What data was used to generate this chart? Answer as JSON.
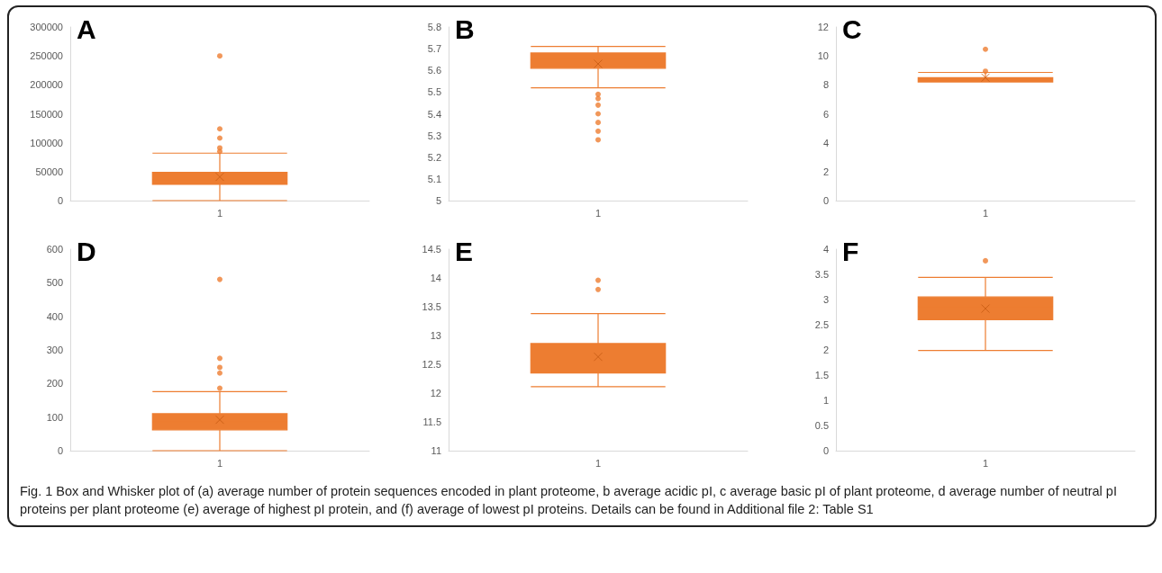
{
  "chart_data": [
    {
      "type": "box",
      "title": "A",
      "categories": [
        "1"
      ],
      "color": "#ed7d31",
      "ylim": [
        0,
        300000
      ],
      "yticks": [
        0,
        50000,
        100000,
        150000,
        200000,
        250000,
        300000
      ],
      "boxes": [
        {
          "low": 0,
          "q1": 28000,
          "median": 36000,
          "q3": 49000,
          "high": 82000,
          "mean": 41000,
          "outliers": [
            250000,
            124000,
            108000,
            91000,
            85000
          ]
        }
      ]
    },
    {
      "type": "box",
      "title": "B",
      "categories": [
        "1"
      ],
      "color": "#ed7d31",
      "ylim": [
        5,
        5.8
      ],
      "yticks": [
        5,
        5.1,
        5.2,
        5.3,
        5.4,
        5.5,
        5.6,
        5.7,
        5.8
      ],
      "boxes": [
        {
          "low": 5.52,
          "q1": 5.61,
          "median": 5.65,
          "q3": 5.68,
          "high": 5.71,
          "mean": 5.63,
          "outliers": [
            5.49,
            5.47,
            5.44,
            5.4,
            5.36,
            5.32,
            5.28
          ]
        }
      ]
    },
    {
      "type": "box",
      "title": "C",
      "categories": [
        "1"
      ],
      "color": "#ed7d31",
      "ylim": [
        0,
        12
      ],
      "yticks": [
        0,
        2,
        4,
        6,
        8,
        10,
        12
      ],
      "boxes": [
        {
          "low": 8.2,
          "q1": 8.2,
          "median": 8.35,
          "q3": 8.5,
          "high": 8.86,
          "mean": 8.5,
          "outliers": [
            10.46,
            8.94
          ]
        }
      ]
    },
    {
      "type": "box",
      "title": "D",
      "categories": [
        "1"
      ],
      "color": "#ed7d31",
      "ylim": [
        0,
        600
      ],
      "yticks": [
        0,
        100,
        200,
        300,
        400,
        500,
        600
      ],
      "boxes": [
        {
          "low": 0,
          "q1": 62,
          "median": 85,
          "q3": 110,
          "high": 176,
          "mean": 92,
          "outliers": [
            510,
            275,
            248,
            231,
            186
          ]
        }
      ]
    },
    {
      "type": "box",
      "title": "E",
      "categories": [
        "1"
      ],
      "color": "#ed7d31",
      "ylim": [
        11,
        14.5
      ],
      "yticks": [
        11,
        11.5,
        12,
        12.5,
        13,
        13.5,
        14,
        14.5
      ],
      "boxes": [
        {
          "low": 12.11,
          "q1": 12.35,
          "median": 12.57,
          "q3": 12.86,
          "high": 13.38,
          "mean": 12.63,
          "outliers": [
            13.96,
            13.8
          ]
        }
      ]
    },
    {
      "type": "box",
      "title": "F",
      "categories": [
        "1"
      ],
      "color": "#ed7d31",
      "ylim": [
        0,
        4
      ],
      "yticks": [
        0,
        0.5,
        1,
        1.5,
        2,
        2.5,
        3,
        3.5,
        4
      ],
      "boxes": [
        {
          "low": 1.99,
          "q1": 2.6,
          "median": 2.86,
          "q3": 3.05,
          "high": 3.44,
          "mean": 2.82,
          "outliers": [
            3.77
          ]
        }
      ]
    },
    {
      "type": "other",
      "annotations": [
        "Fig. 1 Box and Whisker plot of (a) average number of protein sequences encoded in plant proteome, b average acidic pI, c average basic pI of plant proteome, d average number of neutral pI proteins per plant proteome (e) average of highest pI protein, and (f) average of lowest pI proteins. Details can be found in Additional file 2: Table S1"
      ]
    }
  ]
}
